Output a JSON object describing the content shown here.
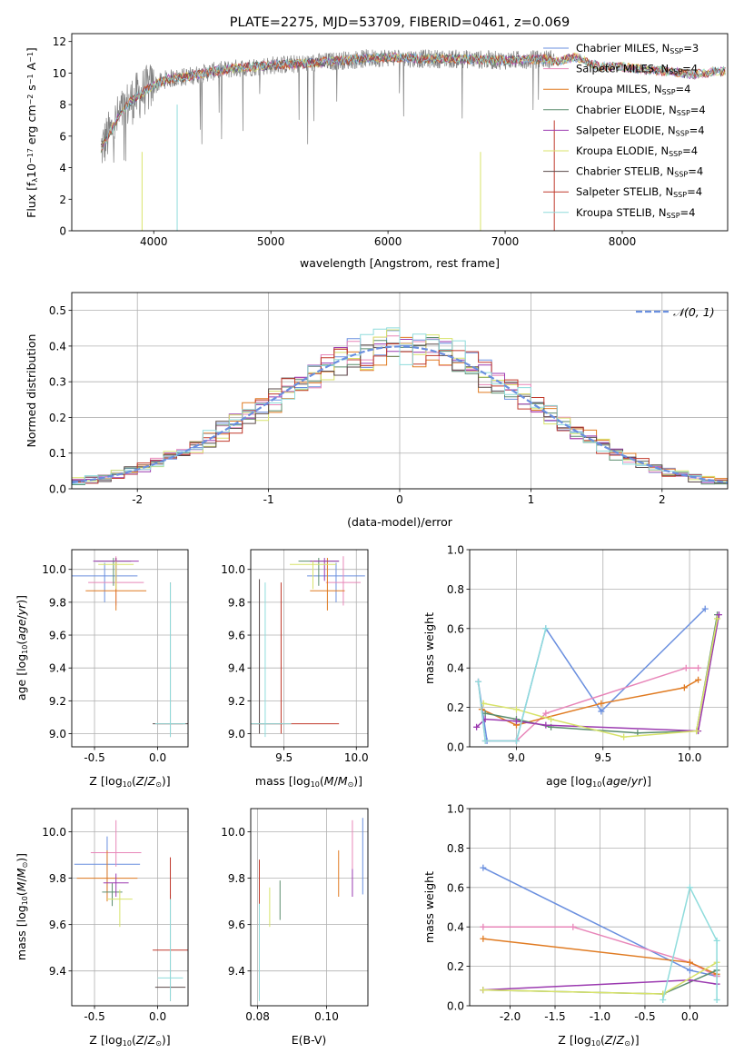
{
  "chart_data": [
    {
      "type": "line",
      "title": "PLATE=2275, MJD=53709, FIBERID=0461, z=0.069",
      "xlabel": "wavelength [Angstrom, rest frame]",
      "ylabel": "Flux [fλ10⁻¹⁷ erg cm⁻² s⁻¹ A⁻¹]",
      "xlim": [
        3300,
        8900
      ],
      "ylim": [
        0,
        12.5
      ],
      "xticks": [
        4000,
        5000,
        6000,
        7000,
        8000
      ],
      "yticks": [
        0,
        2,
        4,
        6,
        8,
        10,
        12
      ],
      "legend_position": "right",
      "observed_color": "#808080",
      "series": [
        {
          "name": "Chabrier MILES, N_SSP=3",
          "color": "#6a8fdf"
        },
        {
          "name": "Salpeter MILES, N_SSP=4",
          "color": "#e886b9"
        },
        {
          "name": "Kroupa MILES, N_SSP=4",
          "color": "#e07b22"
        },
        {
          "name": "Chabrier ELODIE, N_SSP=4",
          "color": "#5b8d6e"
        },
        {
          "name": "Salpeter ELODIE, N_SSP=4",
          "color": "#9b3ab0"
        },
        {
          "name": "Kroupa ELODIE, N_SSP=4",
          "color": "#d8e36a"
        },
        {
          "name": "Chabrier STELIB, N_SSP=4",
          "color": "#5a4a4a"
        },
        {
          "name": "Salpeter STELIB, N_SSP=4",
          "color": "#c0392b"
        },
        {
          "name": "Kroupa STELIB, N_SSP=4",
          "color": "#8fdcdc"
        }
      ],
      "continuum": [
        [
          3550,
          5.2
        ],
        [
          3700,
          7.2
        ],
        [
          3800,
          8.2
        ],
        [
          3950,
          9.0
        ],
        [
          4100,
          9.6
        ],
        [
          4300,
          9.8
        ],
        [
          4500,
          10.1
        ],
        [
          4700,
          10.3
        ],
        [
          5000,
          10.5
        ],
        [
          5300,
          10.6
        ],
        [
          5600,
          10.8
        ],
        [
          6000,
          11.0
        ],
        [
          6300,
          10.9
        ],
        [
          6600,
          10.9
        ],
        [
          7000,
          10.8
        ],
        [
          7400,
          10.9
        ]
      ],
      "model_ext": [
        [
          7000,
          10.6
        ],
        [
          7400,
          10.7
        ],
        [
          7600,
          11.0
        ],
        [
          7800,
          10.4
        ],
        [
          8000,
          10.4
        ],
        [
          8200,
          10.2
        ],
        [
          8400,
          10.1
        ],
        [
          8600,
          9.9
        ],
        [
          8800,
          10.1
        ]
      ]
    },
    {
      "type": "line",
      "xlabel": "(data-model)/error",
      "ylabel": "Normed distribution",
      "xlim": [
        -2.5,
        2.5
      ],
      "ylim": [
        0,
        0.55
      ],
      "xticks": [
        -2,
        -1,
        0,
        1,
        2
      ],
      "yticks": [
        0.0,
        0.1,
        0.2,
        0.3,
        0.4,
        0.5
      ],
      "legend": "𝒩(0, 1)",
      "legend_position": "top-right",
      "normal_color": "#6a8fdf",
      "bin_width": 0.1
    },
    {
      "type": "scatter",
      "xlabel": "Z [log₁₀(Z/Z⊙)]",
      "ylabel": "age  [log₁₀(age/yr)]",
      "xlim": [
        -0.68,
        0.24
      ],
      "ylim": [
        8.92,
        10.12
      ],
      "xticks": [
        -0.5,
        0.0
      ],
      "yticks": [
        9.0,
        9.2,
        9.4,
        9.6,
        9.8,
        10.0
      ],
      "points": [
        {
          "x": -0.42,
          "y": 9.96,
          "xerr": 0.26,
          "yerr": [
            0.16,
            0.08
          ],
          "c": 0
        },
        {
          "x": -0.33,
          "y": 9.92,
          "xerr": 0.22,
          "yerr": [
            0.14,
            0.16
          ],
          "c": 1
        },
        {
          "x": -0.33,
          "y": 9.87,
          "xerr": 0.24,
          "yerr": [
            0.12,
            0.2
          ],
          "c": 2
        },
        {
          "x": -0.35,
          "y": 10.05,
          "xerr": 0.14,
          "yerr": [
            0.15,
            0.02
          ],
          "c": 3
        },
        {
          "x": -0.33,
          "y": 10.05,
          "xerr": 0.18,
          "yerr": [
            0.12,
            0.02
          ],
          "c": 4
        },
        {
          "x": -0.33,
          "y": 10.03,
          "xerr": 0.14,
          "yerr": [
            0.15,
            0.02
          ],
          "c": 5
        },
        {
          "x": 0.1,
          "y": 9.06,
          "xerr": 0.14,
          "yerr": [
            0.06,
            0.86
          ],
          "c": 6
        },
        {
          "x": 0.1,
          "y": 9.06,
          "xerr": 0.1,
          "yerr": [
            0.08,
            0.86
          ],
          "c": 7
        },
        {
          "x": 0.1,
          "y": 9.06,
          "xerr": 0.12,
          "yerr": [
            0.08,
            0.86
          ],
          "c": 8
        }
      ]
    },
    {
      "type": "scatter",
      "xlabel": "mass [log₁₀(M/M⊙)]",
      "xlim": [
        9.27,
        10.08
      ],
      "ylim": [
        8.92,
        10.12
      ],
      "xticks": [
        9.5,
        10.0
      ],
      "yticks": [
        9.0,
        9.2,
        9.4,
        9.6,
        9.8,
        10.0
      ],
      "points": [
        {
          "x": 9.86,
          "y": 9.96,
          "xerr": 0.2,
          "yerr": [
            0.16,
            0.08
          ],
          "c": 0
        },
        {
          "x": 9.91,
          "y": 9.92,
          "xerr": 0.12,
          "yerr": [
            0.14,
            0.16
          ],
          "c": 1
        },
        {
          "x": 9.8,
          "y": 9.87,
          "xerr": 0.12,
          "yerr": [
            0.12,
            0.2
          ],
          "c": 2
        },
        {
          "x": 9.74,
          "y": 10.05,
          "xerr": 0.14,
          "yerr": [
            0.15,
            0.02
          ],
          "c": 3
        },
        {
          "x": 9.78,
          "y": 10.05,
          "xerr": 0.1,
          "yerr": [
            0.12,
            0.02
          ],
          "c": 4
        },
        {
          "x": 9.7,
          "y": 10.03,
          "xerr": 0.16,
          "yerr": [
            0.15,
            0.02
          ],
          "c": 5
        },
        {
          "x": 9.33,
          "y": 9.06,
          "xerr": 0.16,
          "yerr": [
            0.06,
            0.88
          ],
          "c": 6
        },
        {
          "x": 9.48,
          "y": 9.06,
          "xerr": 0.4,
          "yerr": [
            0.06,
            0.86
          ],
          "c": 7
        },
        {
          "x": 9.37,
          "y": 9.06,
          "xerr": 0.18,
          "yerr": [
            0.08,
            0.86
          ],
          "c": 8
        }
      ]
    },
    {
      "type": "line",
      "xlabel": "age  [log₁₀(age/yr)]",
      "ylabel": "mass weight",
      "xlim": [
        8.73,
        10.22
      ],
      "ylim": [
        0,
        1.0
      ],
      "xticks": [
        9.0,
        9.5,
        10.0
      ],
      "yticks": [
        0.0,
        0.2,
        0.4,
        0.6,
        0.8,
        1.0
      ],
      "series": [
        {
          "c": 0,
          "x": [
            8.78,
            8.83,
            9.0,
            9.17,
            9.49,
            10.09
          ],
          "y": [
            0.33,
            0.03,
            0.03,
            0.6,
            0.18,
            0.7
          ]
        },
        {
          "c": 1,
          "x": [
            8.78,
            8.82,
            9.0,
            9.17,
            9.98,
            10.05
          ],
          "y": [
            0.33,
            0.03,
            0.03,
            0.17,
            0.4,
            0.4
          ]
        },
        {
          "c": 2,
          "x": [
            8.8,
            9.0,
            9.49,
            9.97,
            10.05
          ],
          "y": [
            0.19,
            0.11,
            0.22,
            0.3,
            0.34
          ]
        },
        {
          "c": 3,
          "x": [
            8.82,
            9.0,
            9.2,
            9.7,
            10.04,
            10.16
          ],
          "y": [
            0.17,
            0.14,
            0.1,
            0.07,
            0.08,
            0.67
          ]
        },
        {
          "c": 4,
          "x": [
            8.77,
            8.82,
            9.0,
            9.17,
            10.05,
            10.17
          ],
          "y": [
            0.1,
            0.14,
            0.13,
            0.11,
            0.08,
            0.67
          ]
        },
        {
          "c": 5,
          "x": [
            8.81,
            9.0,
            9.2,
            9.62,
            10.04,
            10.16
          ],
          "y": [
            0.22,
            0.19,
            0.14,
            0.05,
            0.08,
            0.65
          ]
        },
        {
          "c": 8,
          "x": [
            8.78,
            8.82,
            9.0,
            9.17
          ],
          "y": [
            0.33,
            0.03,
            0.03,
            0.6
          ]
        }
      ]
    },
    {
      "type": "scatter",
      "xlabel": "Z [log₁₀(Z/Z⊙)]",
      "ylabel": "mass [log₁₀(M/M⊙)]",
      "xlim": [
        -0.68,
        0.24
      ],
      "ylim": [
        9.25,
        10.1
      ],
      "xticks": [
        -0.5,
        0.0
      ],
      "yticks": [
        9.4,
        9.6,
        9.8,
        10.0
      ],
      "points": [
        {
          "x": -0.4,
          "y": 9.86,
          "xerr": 0.26,
          "yerr": [
            0.12,
            0.12
          ],
          "c": 0
        },
        {
          "x": -0.33,
          "y": 9.91,
          "xerr": 0.2,
          "yerr": [
            0.06,
            0.14
          ],
          "c": 1
        },
        {
          "x": -0.4,
          "y": 9.8,
          "xerr": 0.24,
          "yerr": [
            0.1,
            0.12
          ],
          "c": 2
        },
        {
          "x": -0.36,
          "y": 9.74,
          "xerr": 0.08,
          "yerr": [
            0.06,
            0.04
          ],
          "c": 3
        },
        {
          "x": -0.33,
          "y": 9.78,
          "xerr": 0.1,
          "yerr": [
            0.06,
            0.04
          ],
          "c": 4
        },
        {
          "x": -0.3,
          "y": 9.71,
          "xerr": 0.1,
          "yerr": [
            0.12,
            0.04
          ],
          "c": 5
        },
        {
          "x": 0.1,
          "y": 9.33,
          "xerr": 0.12,
          "yerr": [
            0.04,
            0.4
          ],
          "c": 6
        },
        {
          "x": 0.1,
          "y": 9.49,
          "xerr": 0.14,
          "yerr": [
            0.22,
            0.4
          ],
          "c": 7
        },
        {
          "x": 0.1,
          "y": 9.37,
          "xerr": 0.1,
          "yerr": [
            0.1,
            0.34
          ],
          "c": 8
        }
      ]
    },
    {
      "type": "scatter",
      "xlabel": "E(B-V)",
      "xlim": [
        0.078,
        0.112
      ],
      "ylim": [
        9.25,
        10.1
      ],
      "xticks": [
        0.08,
        0.1
      ],
      "yticks": [
        9.4,
        9.6,
        9.8,
        10.0
      ],
      "points": [
        {
          "x": 0.1105,
          "y": 9.86,
          "yerr": [
            0.13,
            0.2
          ],
          "c": 0
        },
        {
          "x": 0.1075,
          "y": 9.91,
          "yerr": [
            0.07,
            0.14
          ],
          "c": 1
        },
        {
          "x": 0.1035,
          "y": 9.8,
          "yerr": [
            0.08,
            0.12
          ],
          "c": 2
        },
        {
          "x": 0.0865,
          "y": 9.74,
          "yerr": [
            0.12,
            0.05
          ],
          "c": 3
        },
        {
          "x": 0.1075,
          "y": 9.78,
          "yerr": [
            0.06,
            0.06
          ],
          "c": 4
        },
        {
          "x": 0.0835,
          "y": 9.71,
          "yerr": [
            0.12,
            0.05
          ],
          "c": 5
        },
        {
          "x": 0.0805,
          "y": 9.33,
          "yerr": [
            0.05,
            0.34
          ],
          "c": 6
        },
        {
          "x": 0.0805,
          "y": 9.49,
          "yerr": [
            0.2,
            0.39
          ],
          "c": 7
        },
        {
          "x": 0.0805,
          "y": 9.37,
          "yerr": [
            0.1,
            0.32
          ],
          "c": 8
        }
      ]
    },
    {
      "type": "line",
      "xlabel": "Z [log₁₀(Z/Z⊙)]",
      "ylabel": "mass weight",
      "xlim": [
        -2.45,
        0.42
      ],
      "ylim": [
        0,
        1.0
      ],
      "xticks": [
        -2.0,
        -1.5,
        -1.0,
        -0.5,
        0.0
      ],
      "yticks": [
        0.0,
        0.2,
        0.4,
        0.6,
        0.8,
        1.0
      ],
      "series": [
        {
          "c": 0,
          "x": [
            -2.3,
            0.0,
            0.3
          ],
          "y": [
            0.7,
            0.18,
            0.15
          ]
        },
        {
          "c": 1,
          "x": [
            -2.3,
            -1.3,
            0.0,
            0.3
          ],
          "y": [
            0.4,
            0.4,
            0.22,
            0.15
          ]
        },
        {
          "c": 2,
          "x": [
            -2.3,
            0.0,
            0.3
          ],
          "y": [
            0.34,
            0.22,
            0.16
          ]
        },
        {
          "c": 3,
          "x": [
            -2.3,
            -0.3,
            0.3
          ],
          "y": [
            0.08,
            0.06,
            0.18
          ]
        },
        {
          "c": 4,
          "x": [
            -2.3,
            0.0,
            0.3
          ],
          "y": [
            0.08,
            0.13,
            0.11
          ]
        },
        {
          "c": 5,
          "x": [
            -2.3,
            -0.3,
            0.3
          ],
          "y": [
            0.08,
            0.06,
            0.22
          ]
        },
        {
          "c": 8,
          "x": [
            -0.3,
            0.0,
            0.3,
            0.3
          ],
          "y": [
            0.03,
            0.6,
            0.33,
            0.03
          ]
        }
      ]
    }
  ]
}
